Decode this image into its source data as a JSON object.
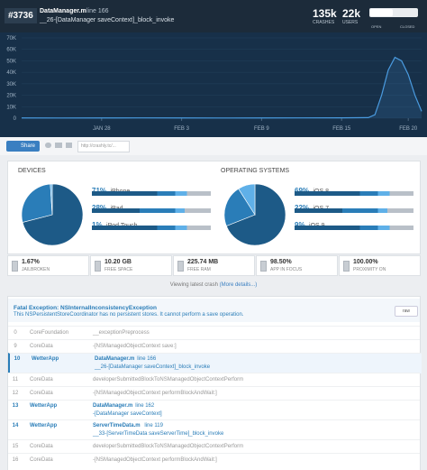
{
  "header": {
    "issue_number": "#3736",
    "file": "DataManager.m",
    "line_label": "line 166",
    "method": "__26-[DataManager saveContext]_block_invoke",
    "crashes": "135k",
    "crashes_label": "CRASHES",
    "users": "22k",
    "users_label": "USERS",
    "open": "OPEN",
    "closed": "CLOSED"
  },
  "crash_chart": {
    "type": "area",
    "color": "#4a9be0",
    "x": [
      0,
      3,
      6,
      9,
      12,
      15,
      18,
      21,
      24,
      26,
      26.5,
      27,
      27.5,
      28,
      28.5,
      29,
      29.5,
      30
    ],
    "values": [
      200,
      150,
      200,
      250,
      200,
      150,
      200,
      250,
      300,
      500,
      3000,
      20000,
      42000,
      53000,
      50000,
      38000,
      20000,
      6000
    ],
    "xlim": [
      0,
      30
    ],
    "xticks": [
      {
        "value": 6,
        "label": "JAN 28"
      },
      {
        "value": 12,
        "label": "FEB 3"
      },
      {
        "value": 18,
        "label": "FEB 9"
      },
      {
        "value": 24,
        "label": "FEB 15"
      },
      {
        "value": 29,
        "label": "FEB 20"
      }
    ],
    "ylim": [
      0,
      70000
    ],
    "yticks": [
      0,
      {
        "value": 10000,
        "label": "10K"
      },
      {
        "value": 20000,
        "label": "20K"
      },
      {
        "value": 30000,
        "label": "30K"
      },
      {
        "value": 40000,
        "label": "40K"
      },
      {
        "value": 50000,
        "label": "50K"
      },
      {
        "value": 60000,
        "label": "60K"
      },
      {
        "value": 70000,
        "label": "70K"
      }
    ],
    "grid": true
  },
  "share": {
    "button": "Share",
    "url": "http://crashly.tc/..."
  },
  "devices": {
    "type": "pie",
    "title": "DEVICES",
    "categories": [
      "iPhone",
      "iPad",
      "iPod Touch"
    ],
    "values": [
      71,
      28,
      1
    ],
    "value_labels": [
      "71%",
      "28%",
      "1%"
    ],
    "colors": [
      "#1d5a87",
      "#2a7db8",
      "#5fb0e8"
    ]
  },
  "operating_systems": {
    "type": "pie",
    "title": "OPERATING SYSTEMS",
    "categories": [
      "iOS 8",
      "iOS 7",
      "iOS 9"
    ],
    "values": [
      69,
      22,
      9
    ],
    "value_labels": [
      "69%",
      "22%",
      "9%"
    ],
    "colors": [
      "#1d5a87",
      "#2a7db8",
      "#5fb0e8"
    ]
  },
  "stats": [
    {
      "value": "1.67%",
      "label": "JAILBROKEN"
    },
    {
      "value": "10.20 GB",
      "label": "FREE SPACE"
    },
    {
      "value": "225.74 MB",
      "label": "FREE RAM"
    },
    {
      "value": "98.50%",
      "label": "APP IN FOCUS"
    },
    {
      "value": "100.00%",
      "label": "PROXIMITY ON"
    }
  ],
  "viewing": {
    "text": "Viewing latest crash",
    "link": "(More details...)"
  },
  "exception": {
    "title": "Fatal Exception: NSInternalInconsistencyException",
    "message": "This NSPersistentStoreCoordinator has no persistent stores. It cannot perform a save operation.",
    "button": "raw"
  },
  "frames": [
    {
      "index": 0,
      "library": "CoreFoundation",
      "symbol": "__exceptionPreprocess"
    },
    {
      "index": 9,
      "library": "CoreData",
      "symbol": "-[NSManagedObjectContext save:]"
    },
    {
      "index": 10,
      "library": "WetterApp",
      "file": "DataManager.m",
      "line": "line 166",
      "symbol": "__26-[DataManager saveContext]_block_invoke"
    },
    {
      "index": 11,
      "library": "CoreData",
      "symbol": "developerSubmittedBlockToNSManagedObjectContextPerform"
    },
    {
      "index": 12,
      "library": "CoreData",
      "symbol": "-[NSManagedObjectContext performBlockAndWait:]"
    },
    {
      "index": 13,
      "library": "WetterApp",
      "file": "DataManager.m",
      "line": "line 162",
      "symbol": "-[DataManager saveContext]"
    },
    {
      "index": 14,
      "library": "WetterApp",
      "file": "ServerTimeData.m",
      "line": "line 119",
      "symbol": "__33-[ServerTimeData saveServerTime]_block_invoke"
    },
    {
      "index": 15,
      "library": "CoreData",
      "symbol": "developerSubmittedBlockToNSManagedObjectContextPerform"
    },
    {
      "index": 16,
      "library": "CoreData",
      "symbol": "-[NSManagedObjectContext performBlockAndWait:]"
    }
  ]
}
